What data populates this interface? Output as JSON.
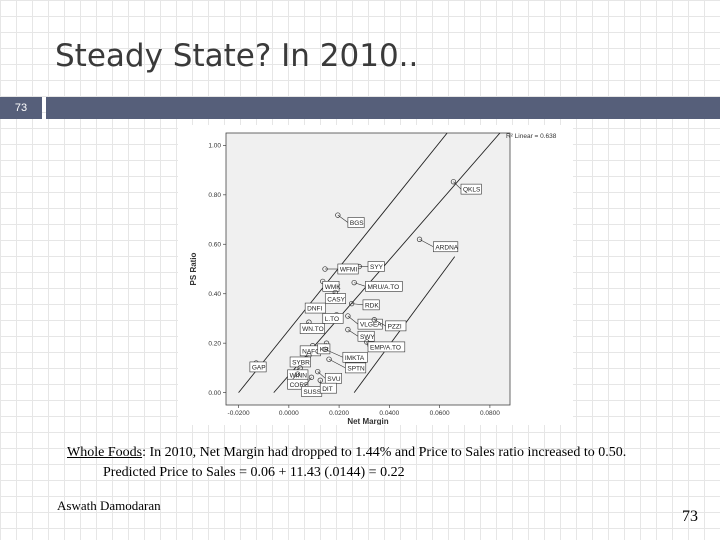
{
  "slide": {
    "title": "Steady State? In 2010..",
    "number_box": "73",
    "page_number": "73",
    "author": "Aswath Damodaran"
  },
  "caption": {
    "line1_company": "Whole Foods",
    "line1_rest": ": In 2010, Net Margin had dropped to 1.44% and Price to Sales ratio increased to 0.50.",
    "line2": "Predicted Price to Sales = 0.06 + 11.43 (.0144) = 0.22"
  },
  "colors": {
    "accent": "#565f7a"
  },
  "chart_data": {
    "type": "scatter",
    "xlabel": "Net Margin",
    "ylabel": "PS Ratio",
    "annotation": "R² Linear = 0.638",
    "xlim": [
      -0.025,
      0.088
    ],
    "ylim": [
      -0.05,
      1.05
    ],
    "x_ticks": [
      -0.02,
      0.0,
      0.02,
      0.04,
      0.06,
      0.08
    ],
    "x_tick_labels": [
      "-0.0200",
      "0.0000",
      "0.0200",
      "0.0400",
      "0.0600",
      "0.0800"
    ],
    "y_ticks": [
      0.0,
      0.2,
      0.4,
      0.6,
      0.8,
      1.0
    ],
    "y_tick_labels": [
      "0.00",
      "0.20",
      "0.40",
      "0.60",
      "0.80",
      "1.00"
    ],
    "grid": false,
    "fit_lines": [
      {
        "x": [
          -0.02,
          0.063
        ],
        "y": [
          0.0,
          1.05
        ]
      },
      {
        "x": [
          -0.006,
          0.084
        ],
        "y": [
          0.0,
          1.05
        ]
      },
      {
        "x": [
          0.026,
          0.066
        ],
        "y": [
          0.0,
          0.55
        ]
      }
    ],
    "points": [
      {
        "label": "QKLS",
        "x": 0.0655,
        "y": 0.853,
        "lx": 0.0685,
        "ly": 0.823
      },
      {
        "label": "BGS",
        "x": 0.0195,
        "y": 0.718,
        "lx": 0.0235,
        "ly": 0.688
      },
      {
        "label": "ARDNA",
        "x": 0.052,
        "y": 0.62,
        "lx": 0.0575,
        "ly": 0.59
      },
      {
        "label": "SYY",
        "x": 0.028,
        "y": 0.51,
        "lx": 0.0315,
        "ly": 0.51
      },
      {
        "label": "WFMI",
        "x": 0.0144,
        "y": 0.5,
        "lx": 0.0195,
        "ly": 0.5
      },
      {
        "label": "WMK",
        "x": 0.0135,
        "y": 0.45,
        "lx": 0.0135,
        "ly": 0.43
      },
      {
        "label": "MRU/A.TO",
        "x": 0.026,
        "y": 0.445,
        "lx": 0.0305,
        "ly": 0.43
      },
      {
        "label": "CASY",
        "x": 0.0185,
        "y": 0.405,
        "lx": 0.0145,
        "ly": 0.38
      },
      {
        "label": "DNFI",
        "x": 0.0075,
        "y": 0.345,
        "lx": 0.0065,
        "ly": 0.342
      },
      {
        "label": "RDK",
        "x": 0.025,
        "y": 0.36,
        "lx": 0.0295,
        "ly": 0.355
      },
      {
        "label": "L.TO",
        "x": 0.019,
        "y": 0.315,
        "lx": 0.0135,
        "ly": 0.3
      },
      {
        "label": "VLGEA",
        "x": 0.0235,
        "y": 0.31,
        "lx": 0.0275,
        "ly": 0.277
      },
      {
        "label": "WN.TO",
        "x": 0.008,
        "y": 0.285,
        "lx": 0.0045,
        "ly": 0.259
      },
      {
        "label": "PZZI",
        "x": 0.034,
        "y": 0.295,
        "lx": 0.0385,
        "ly": 0.27
      },
      {
        "label": "SWY",
        "x": 0.0235,
        "y": 0.255,
        "lx": 0.0275,
        "ly": 0.228
      },
      {
        "label": "NAFC",
        "x": 0.0095,
        "y": 0.19,
        "lx": 0.0045,
        "ly": 0.169
      },
      {
        "label": "KR",
        "x": 0.015,
        "y": 0.2,
        "lx": 0.0115,
        "ly": 0.177
      },
      {
        "label": "EMP/A.TO",
        "x": 0.031,
        "y": 0.205,
        "lx": 0.0315,
        "ly": 0.185
      },
      {
        "label": "IMKTA",
        "x": 0.0145,
        "y": 0.175,
        "lx": 0.0215,
        "ly": 0.143
      },
      {
        "label": "SYBR",
        "x": 0.008,
        "y": 0.15,
        "lx": 0.0005,
        "ly": 0.124
      },
      {
        "label": "SPTN",
        "x": 0.016,
        "y": 0.135,
        "lx": 0.0225,
        "ly": 0.1
      },
      {
        "label": "GAP",
        "x": -0.013,
        "y": 0.12,
        "lx": -0.0155,
        "ly": 0.104
      },
      {
        "label": "WINN",
        "x": 0.0045,
        "y": 0.1,
        "lx": -0.0005,
        "ly": 0.072
      },
      {
        "label": "SVU",
        "x": 0.0115,
        "y": 0.085,
        "lx": 0.0145,
        "ly": 0.058
      },
      {
        "label": "CORE",
        "x": 0.0035,
        "y": 0.075,
        "lx": -0.0005,
        "ly": 0.034
      },
      {
        "label": "SUSS",
        "x": 0.009,
        "y": 0.062,
        "lx": 0.005,
        "ly": 0.005
      },
      {
        "label": "DIT",
        "x": 0.0125,
        "y": 0.05,
        "lx": 0.0125,
        "ly": 0.018
      }
    ]
  }
}
